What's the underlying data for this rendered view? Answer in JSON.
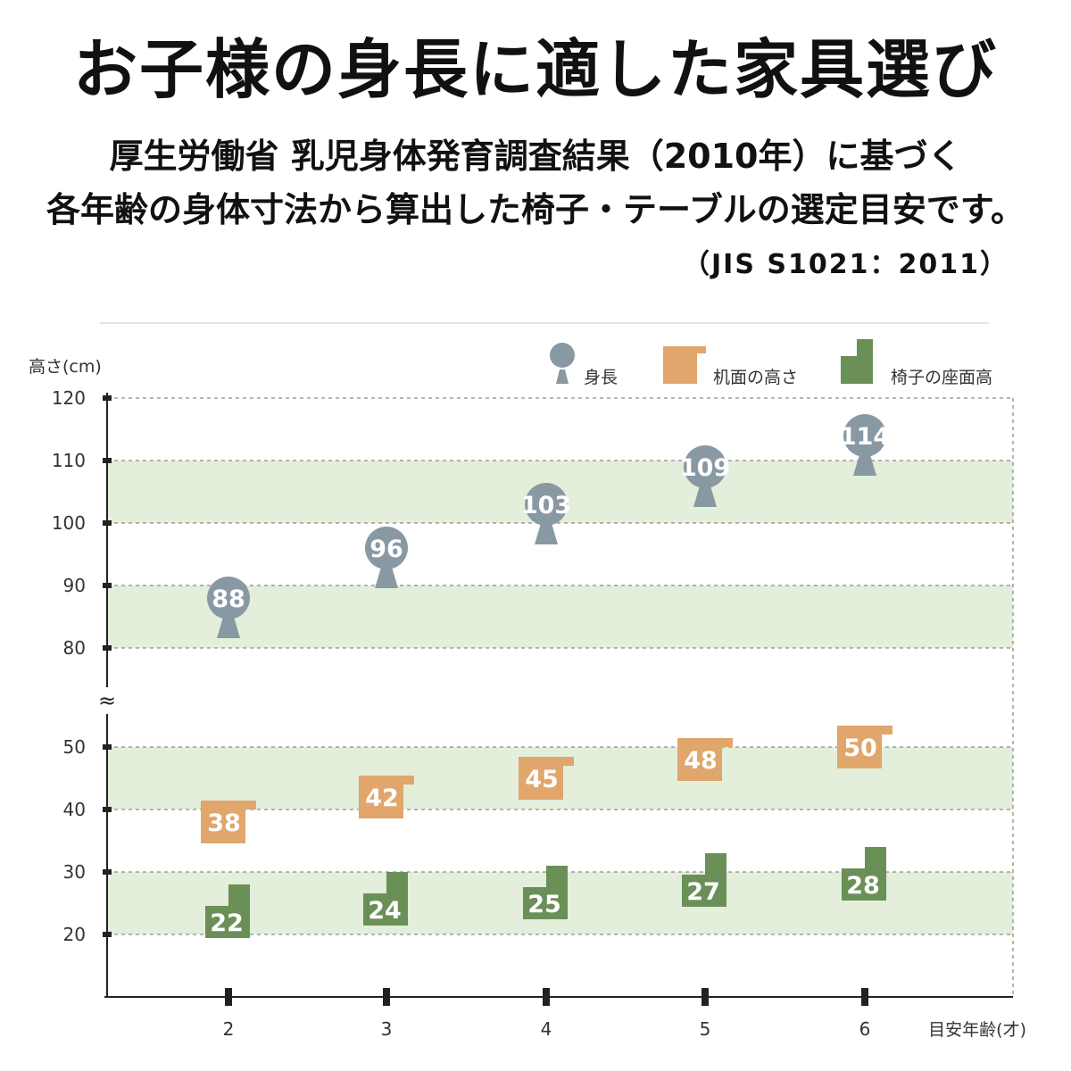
{
  "header": {
    "title": "お子様の身長に適した家具選び",
    "subtitle_line1": "厚生労働省 乳児身体発育調査結果（2010年）に基づく",
    "subtitle_line2": "各年齢の身体寸法から算出した椅子・テーブルの選定目安です。",
    "source": "（JIS S1021：2011）"
  },
  "chart_data": {
    "type": "scatter",
    "ylabel": "高さ(cm)",
    "xlabel": "目安年齢(才)",
    "categories": [
      "2",
      "3",
      "4",
      "5",
      "6"
    ],
    "y_ticks": [
      "20",
      "30",
      "40",
      "50",
      "80",
      "90",
      "100",
      "110",
      "120"
    ],
    "y_axis_break": "≈",
    "y_ranges": [
      [
        10,
        55
      ],
      [
        75,
        120
      ]
    ],
    "legend_position": "top-right",
    "grid": "dashed horizontal",
    "band_color": "#e3eedb",
    "series": [
      {
        "name": "身長",
        "color": "#8899a3",
        "marker": "person-icon",
        "values": [
          88,
          96,
          103,
          109,
          114
        ]
      },
      {
        "name": "机面の高さ",
        "color": "#e0a66b",
        "marker": "desk-icon",
        "values": [
          38,
          42,
          45,
          48,
          50
        ]
      },
      {
        "name": "椅子の座面高",
        "color": "#6a8f57",
        "marker": "chair-icon",
        "values": [
          22,
          24,
          25,
          27,
          28
        ]
      }
    ]
  }
}
